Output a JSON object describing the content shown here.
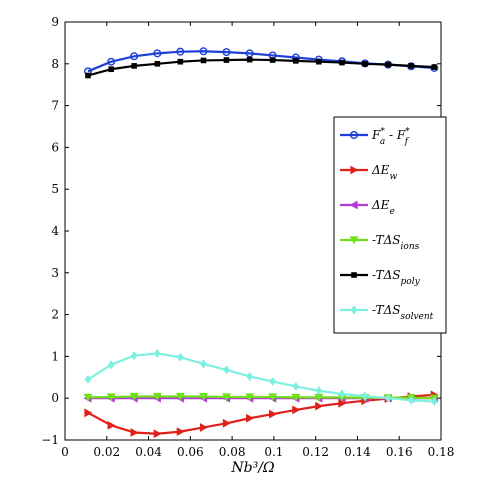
{
  "chart_data": {
    "type": "line",
    "title": "",
    "xlabel": "Nb³/Ω",
    "ylabel": "",
    "xlim": [
      0,
      0.18
    ],
    "ylim": [
      -1,
      9
    ],
    "xticks": [
      0,
      0.02,
      0.04,
      0.06,
      0.08,
      0.1,
      0.12,
      0.14,
      0.16,
      0.18
    ],
    "xtick_labels": [
      "0",
      "0.02",
      "0.04",
      "0.06",
      "0.08",
      "0.1",
      "0.12",
      "0.14",
      "0.16",
      "0.18"
    ],
    "yticks": [
      -1,
      0,
      1,
      2,
      3,
      4,
      5,
      6,
      7,
      8,
      9
    ],
    "ytick_labels": [
      "−1",
      "0",
      "1",
      "2",
      "3",
      "4",
      "5",
      "6",
      "7",
      "8",
      "9"
    ],
    "grid": false,
    "legend_position": "center-right",
    "x": [
      0.011,
      0.0221,
      0.0331,
      0.0442,
      0.0552,
      0.0663,
      0.0773,
      0.0884,
      0.0994,
      0.1105,
      0.1215,
      0.1326,
      0.1436,
      0.1547,
      0.1657,
      0.1768
    ],
    "series": [
      {
        "name": "F*a - F*f",
        "label_parts": {
          "pre": "F",
          "pre_sup": "*",
          "pre_sub": "a",
          "mid": " - F",
          "post_sup": "*",
          "post_sub": "f"
        },
        "color": "#1f3fd9",
        "marker": "circle-open",
        "values": [
          7.82,
          8.05,
          8.18,
          8.25,
          8.29,
          8.3,
          8.28,
          8.25,
          8.2,
          8.15,
          8.1,
          8.06,
          8.01,
          7.98,
          7.94,
          7.9
        ]
      },
      {
        "name": "ΔEw",
        "label_parts": {
          "pre": "ΔE",
          "pre_sub": "w"
        },
        "color": "#e0201a",
        "marker": "triangle-right",
        "values": [
          -0.35,
          -0.65,
          -0.82,
          -0.85,
          -0.8,
          -0.7,
          -0.6,
          -0.48,
          -0.38,
          -0.28,
          -0.19,
          -0.12,
          -0.06,
          -0.01,
          0.04,
          0.08
        ]
      },
      {
        "name": "ΔEe",
        "label_parts": {
          "pre": "ΔE",
          "pre_sub": "e"
        },
        "color": "#b43ad6",
        "marker": "triangle-left",
        "values": [
          0.0,
          0.0,
          0.0,
          0.0,
          0.0,
          0.0,
          0.0,
          0.0,
          0.0,
          0.0,
          0.0,
          0.0,
          0.0,
          0.0,
          0.0,
          0.0
        ]
      },
      {
        "name": "-TΔSions",
        "label_parts": {
          "pre": "-TΔS",
          "pre_sub": "ions"
        },
        "color": "#6fe01a",
        "marker": "triangle-down",
        "values": [
          0.02,
          0.03,
          0.04,
          0.04,
          0.04,
          0.04,
          0.03,
          0.03,
          0.03,
          0.02,
          0.02,
          0.02,
          0.01,
          0.01,
          0.01,
          0.0
        ]
      },
      {
        "name": "-TΔSpoly",
        "label_parts": {
          "pre": "-TΔS",
          "pre_sub": "poly"
        },
        "color": "#000000",
        "marker": "square",
        "values": [
          7.72,
          7.87,
          7.95,
          8.0,
          8.05,
          8.08,
          8.09,
          8.1,
          8.09,
          8.07,
          8.05,
          8.03,
          8.0,
          7.98,
          7.95,
          7.92
        ]
      },
      {
        "name": "-TΔSsolvent",
        "label_parts": {
          "pre": "-TΔS",
          "pre_sub": "solvent"
        },
        "color": "#7ff0e0",
        "marker": "diamond",
        "values": [
          0.45,
          0.8,
          1.02,
          1.07,
          0.98,
          0.82,
          0.68,
          0.52,
          0.4,
          0.28,
          0.18,
          0.1,
          0.05,
          0.0,
          -0.05,
          -0.08
        ]
      }
    ]
  }
}
